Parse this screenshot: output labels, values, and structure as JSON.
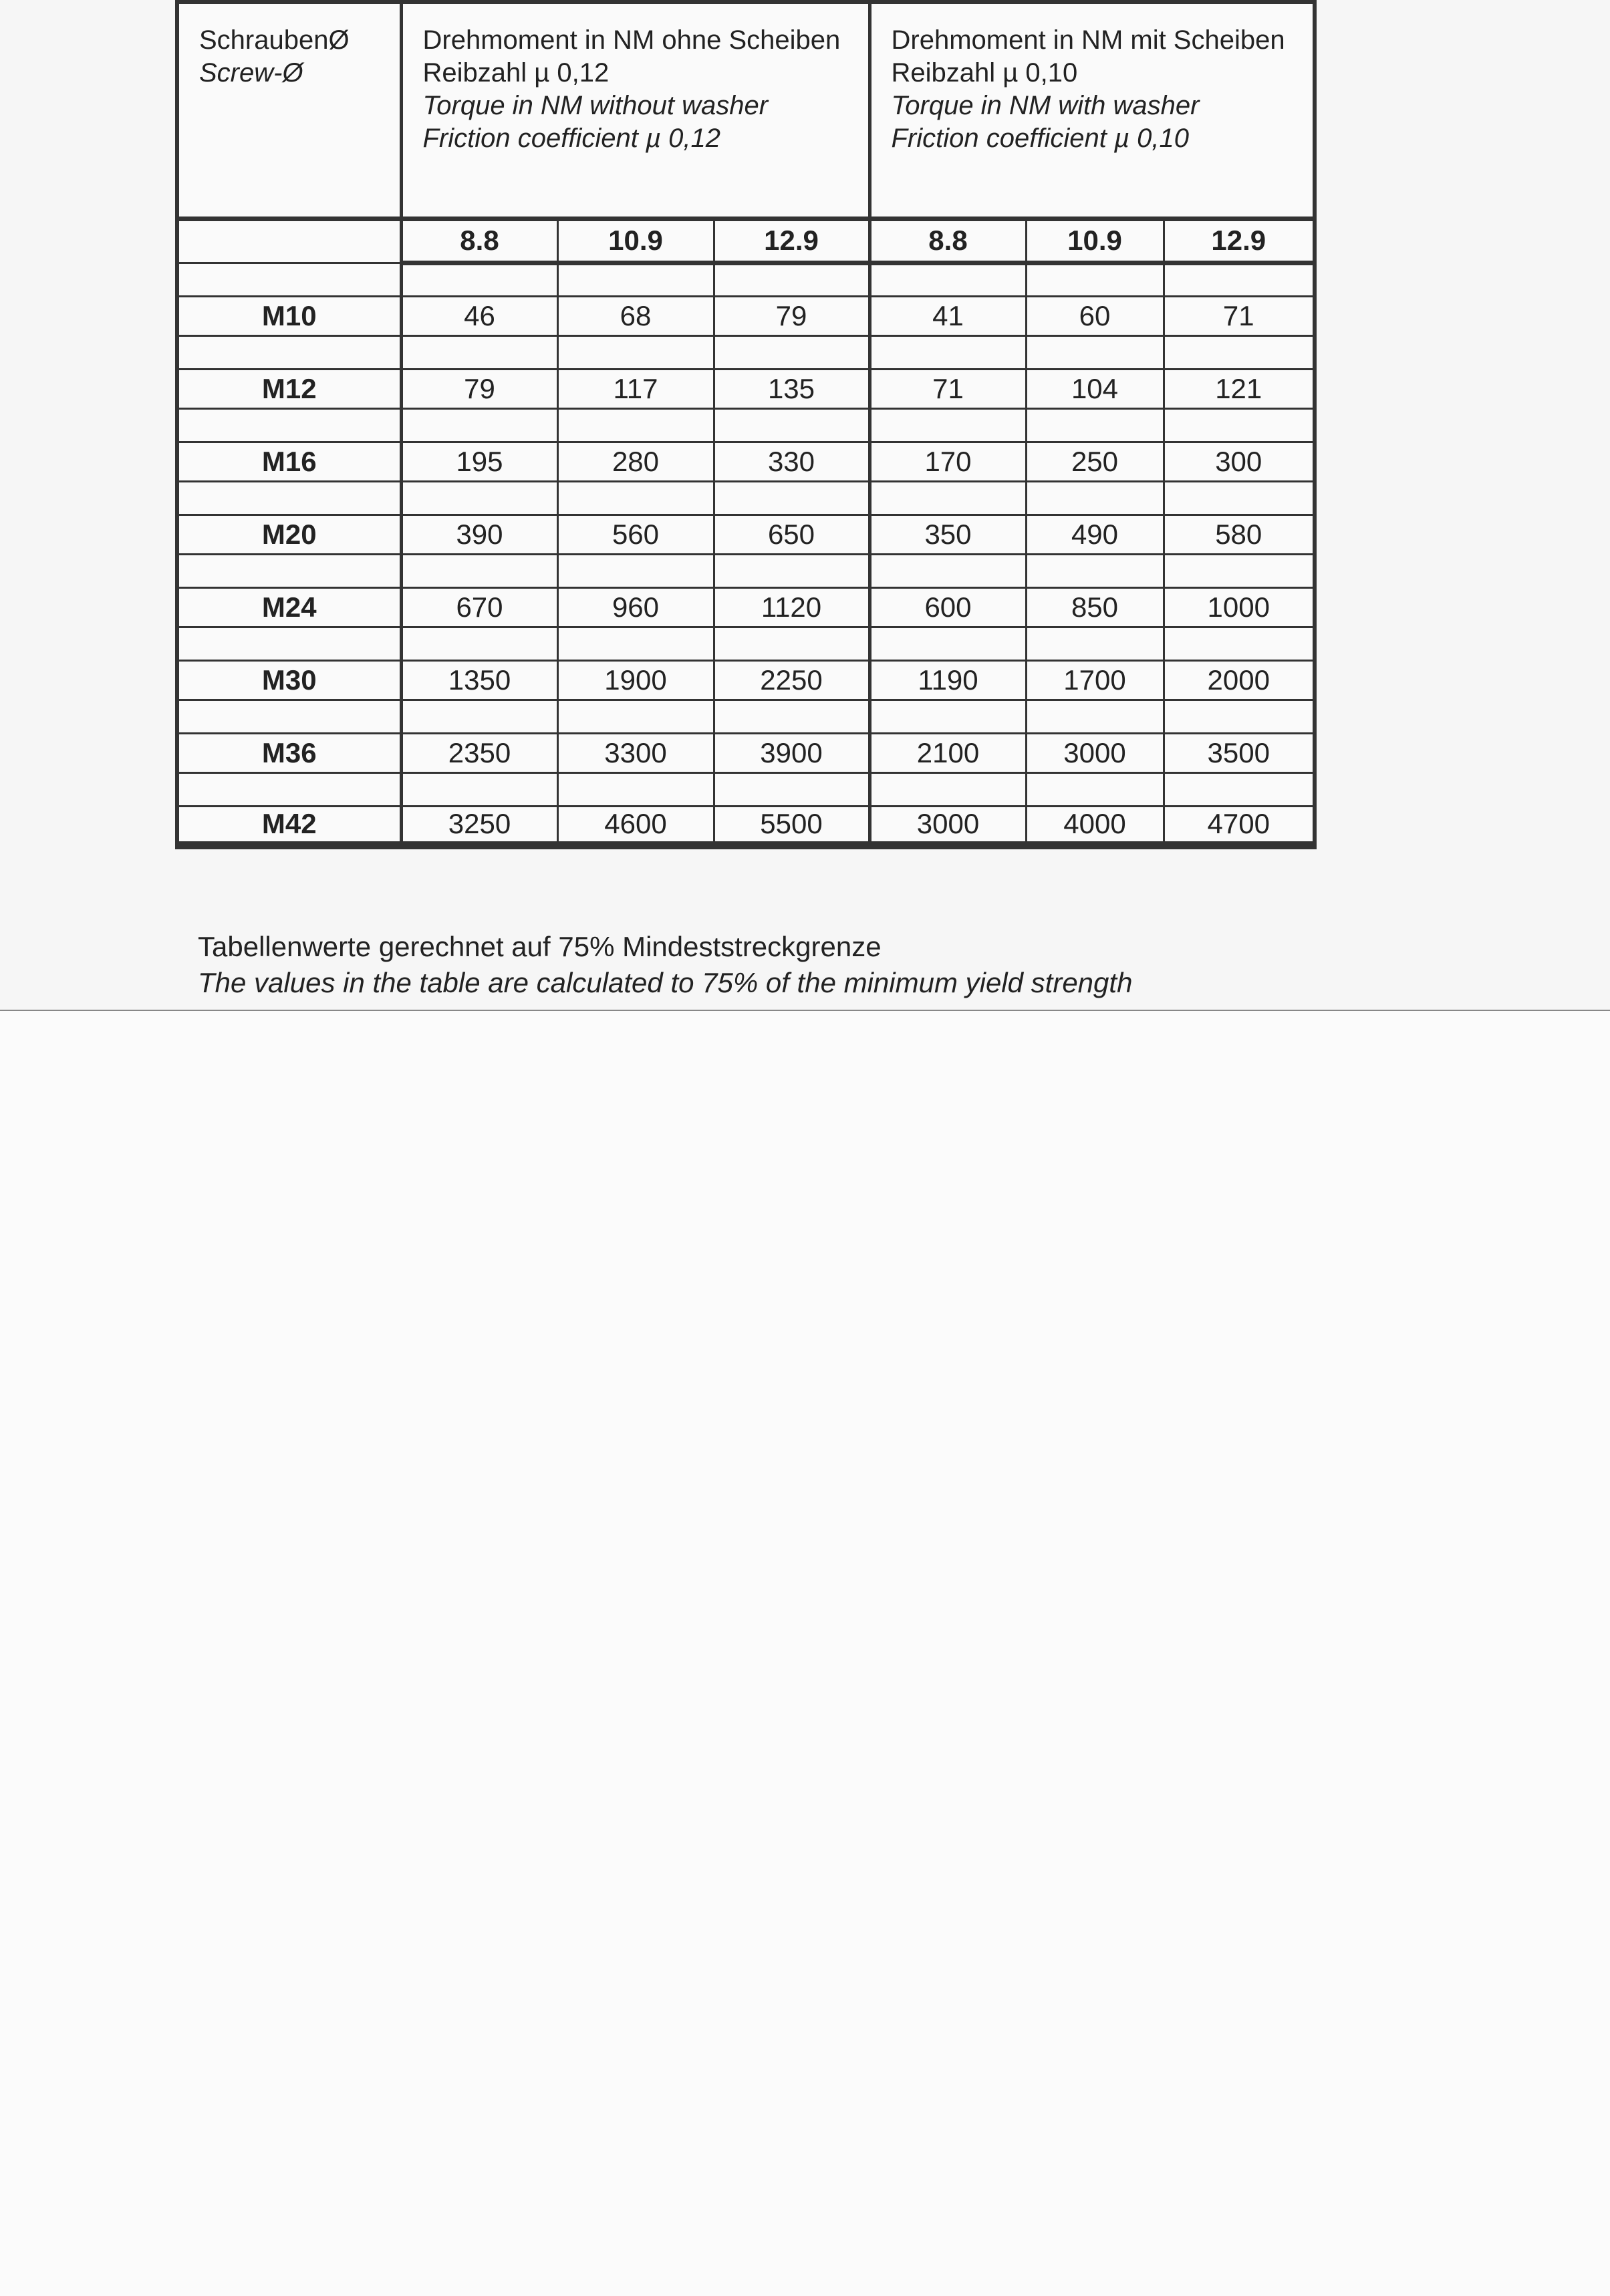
{
  "header": {
    "screw": {
      "de": "SchraubenØ",
      "en": "Screw-Ø"
    },
    "groups": [
      {
        "de_title": "Drehmoment in NM ohne Scheiben",
        "de_friction": "Reibzahl µ 0,12",
        "en_title": "Torque in NM without washer",
        "en_friction": "Friction coefficient µ 0,12"
      },
      {
        "de_title": "Drehmoment in NM mit Scheiben",
        "de_friction": "Reibzahl µ 0,10",
        "en_title": "Torque in NM with washer",
        "en_friction": "Friction coefficient µ 0,10"
      }
    ],
    "grades": [
      "8.8",
      "10.9",
      "12.9",
      "8.8",
      "10.9",
      "12.9"
    ]
  },
  "rows": [
    {
      "size": "M10",
      "values": [
        "46",
        "68",
        "79",
        "41",
        "60",
        "71"
      ]
    },
    {
      "size": "M12",
      "values": [
        "79",
        "117",
        "135",
        "71",
        "104",
        "121"
      ]
    },
    {
      "size": "M16",
      "values": [
        "195",
        "280",
        "330",
        "170",
        "250",
        "300"
      ]
    },
    {
      "size": "M20",
      "values": [
        "390",
        "560",
        "650",
        "350",
        "490",
        "580"
      ]
    },
    {
      "size": "M24",
      "values": [
        "670",
        "960",
        "1120",
        "600",
        "850",
        "1000"
      ]
    },
    {
      "size": "M30",
      "values": [
        "1350",
        "1900",
        "2250",
        "1190",
        "1700",
        "2000"
      ]
    },
    {
      "size": "M36",
      "values": [
        "2350",
        "3300",
        "3900",
        "2100",
        "3000",
        "3500"
      ]
    },
    {
      "size": "M42",
      "values": [
        "3250",
        "4600",
        "5500",
        "3000",
        "4000",
        "4700"
      ]
    }
  ],
  "note": {
    "de": "Tabellenwerte gerechnet auf 75% Mindeststreckgrenze",
    "en": "The values in the table are calculated to 75% of the minimum yield strength"
  }
}
